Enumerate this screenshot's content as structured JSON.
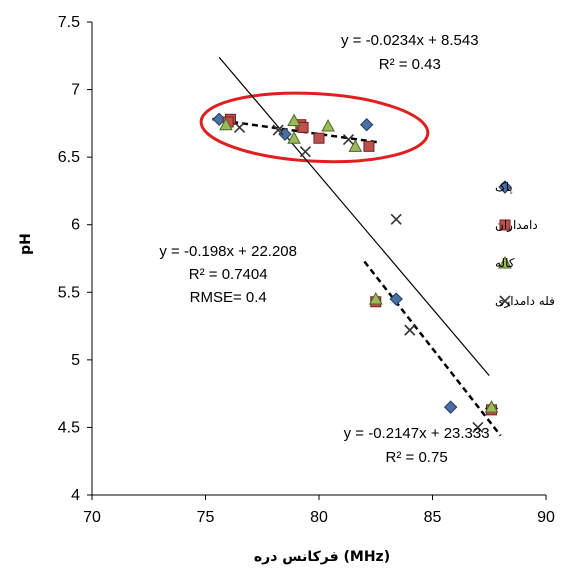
{
  "chart_data": {
    "type": "scatter",
    "xlabel": "فرکانس دره (MHz)",
    "ylabel": "pH",
    "xlim": [
      70,
      90
    ],
    "ylim": [
      4,
      7.5
    ],
    "xticks": [
      "70",
      "75",
      "80",
      "85",
      "90"
    ],
    "yticks": [
      "4",
      "4.5",
      "5",
      "5.5",
      "6",
      "6.5",
      "7",
      "7.5"
    ],
    "grid": false,
    "legend_position": "right",
    "series": [
      {
        "name": "پاک",
        "marker": "diamond",
        "color": "#4a6fa5",
        "points": [
          [
            75.6,
            6.78
          ],
          [
            78.5,
            6.67
          ],
          [
            82.1,
            6.74
          ],
          [
            83.4,
            5.45
          ],
          [
            85.8,
            4.65
          ],
          [
            87.6,
            4.64
          ]
        ]
      },
      {
        "name": "دامداران",
        "marker": "square",
        "color": "#c0504d",
        "points": [
          [
            76.1,
            6.78
          ],
          [
            76.0,
            6.76
          ],
          [
            79.2,
            6.74
          ],
          [
            79.3,
            6.72
          ],
          [
            80.0,
            6.64
          ],
          [
            82.2,
            6.58
          ],
          [
            82.5,
            5.43
          ],
          [
            87.6,
            4.63
          ]
        ]
      },
      {
        "name": "کاله",
        "marker": "triangle",
        "color": "#9bbb59",
        "points": [
          [
            75.9,
            6.74
          ],
          [
            78.9,
            6.77
          ],
          [
            78.9,
            6.64
          ],
          [
            80.4,
            6.73
          ],
          [
            81.6,
            6.58
          ],
          [
            82.5,
            5.45
          ],
          [
            87.6,
            4.65
          ]
        ]
      },
      {
        "name": "فله دامداری",
        "marker": "x",
        "color": "#333333",
        "points": [
          [
            76.5,
            6.72
          ],
          [
            78.2,
            6.7
          ],
          [
            79.4,
            6.54
          ],
          [
            81.3,
            6.63
          ],
          [
            83.4,
            6.04
          ],
          [
            84.0,
            5.22
          ],
          [
            87.0,
            4.5
          ]
        ]
      }
    ],
    "trendlines": [
      {
        "label": "y = -0.0234x + 8.543",
        "r2": "R² = 0.43",
        "x_from": 75.3,
        "x_to": 82.6,
        "style": "dashed"
      },
      {
        "label": "y = -0.198x + 22.208",
        "r2": "R² = 0.7404",
        "rmse": "RMSE= 0.4",
        "x_from": 75.6,
        "x_to": 87.5,
        "style": "solid"
      },
      {
        "label": "y = -0.2147x + 23.333",
        "r2": "R² = 0.75",
        "x_from": 82.0,
        "x_to": 88.0,
        "style": "dashed"
      }
    ],
    "highlight": {
      "shape": "ellipse",
      "color": "#e02020",
      "center": [
        79.8,
        6.72
      ],
      "radii": [
        5.0,
        0.25
      ]
    }
  }
}
